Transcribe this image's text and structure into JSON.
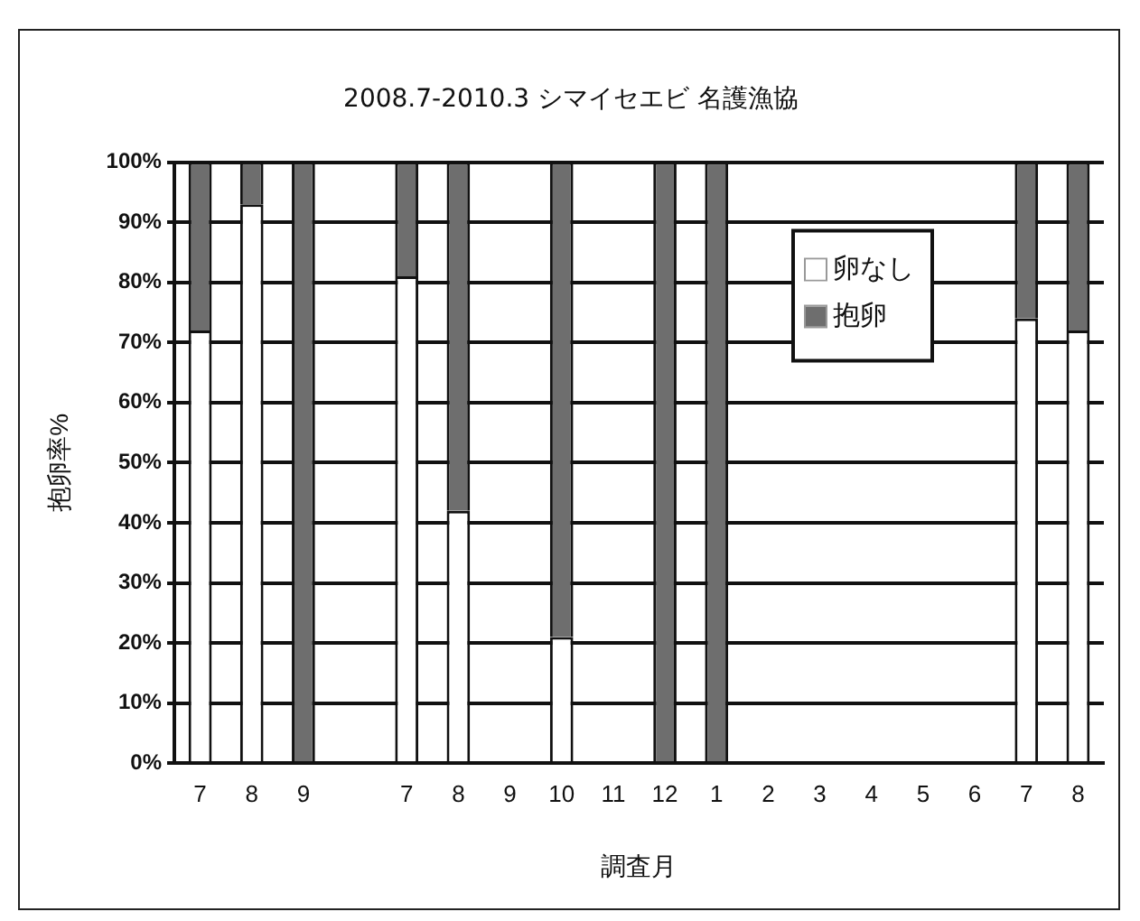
{
  "chart_data": {
    "type": "bar",
    "stacked": true,
    "title": "2008.7-2010.3 シマイセエビ 名護漁協",
    "xlabel": "調査月",
    "ylabel": "抱卵率%",
    "categories": [
      "7",
      "8",
      "9",
      null,
      "7",
      "8",
      "9",
      "10",
      "11",
      "12",
      "1",
      "2",
      "3",
      "4",
      "5",
      "6",
      "7",
      "8"
    ],
    "series": [
      {
        "name": "卵なし",
        "color": "#ffffff",
        "values": [
          72,
          93,
          0,
          null,
          81,
          42,
          null,
          21,
          null,
          0,
          0,
          null,
          null,
          null,
          null,
          null,
          74,
          72
        ]
      },
      {
        "name": "抱卵",
        "color": "#6e6e6e",
        "values": [
          28,
          7,
          100,
          null,
          19,
          58,
          null,
          79,
          null,
          100,
          100,
          null,
          null,
          null,
          null,
          null,
          26,
          28
        ]
      }
    ],
    "ylim": [
      0,
      100
    ],
    "yticks": [
      {
        "value": 0,
        "label": "0%"
      },
      {
        "value": 10,
        "label": "10%"
      },
      {
        "value": 20,
        "label": "20%"
      },
      {
        "value": 30,
        "label": "30%"
      },
      {
        "value": 40,
        "label": "40%"
      },
      {
        "value": 50,
        "label": "50%"
      },
      {
        "value": 60,
        "label": "60%"
      },
      {
        "value": 70,
        "label": "70%"
      },
      {
        "value": 80,
        "label": "80%"
      },
      {
        "value": 90,
        "label": "90%"
      },
      {
        "value": 100,
        "label": "100%"
      }
    ],
    "grid": "y",
    "legend": "top right"
  }
}
